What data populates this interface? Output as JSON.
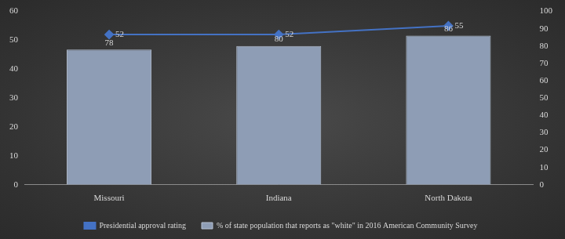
{
  "chart_data": {
    "type": "bar",
    "categories": [
      "Missouri",
      "Indiana",
      "North Dakota"
    ],
    "series": [
      {
        "name": "% of state population that reports as \"white\" in 2016 American Community Survey",
        "type": "bar",
        "color": "#8e9db5",
        "values": [
          78,
          80,
          86
        ],
        "axis": "y2"
      },
      {
        "name": "Presidential approval rating",
        "type": "line",
        "color": "#4472c4",
        "marker": "diamond",
        "values": [
          52,
          52,
          55
        ]
      }
    ],
    "ylim": [
      0,
      60
    ],
    "yticks": [
      0,
      10,
      20,
      30,
      40,
      50,
      60
    ],
    "y2lim": [
      0,
      100
    ],
    "y2ticks": [
      0,
      10,
      20,
      30,
      40,
      50,
      60,
      70,
      80,
      90,
      100
    ],
    "data_labels": true,
    "legend": "bottom",
    "grid": false
  }
}
